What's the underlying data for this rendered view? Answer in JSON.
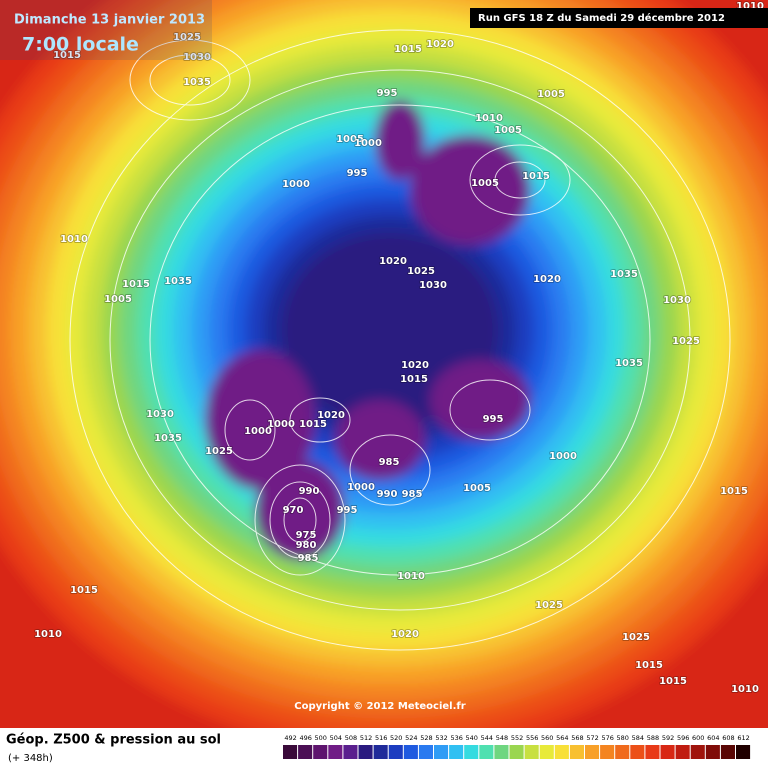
{
  "header": {
    "date": "Dimanche 13 janvier 2013",
    "time": "7:00 locale",
    "run": "Run GFS 18 Z du Samedi 29 décembre 2012"
  },
  "copyright": "Copyright © 2012 Meteociel.fr",
  "footer": {
    "title": "Géop. Z500 & pression au sol",
    "lead": "(+ 348h)"
  },
  "scale": {
    "values": [
      492,
      496,
      500,
      504,
      508,
      512,
      516,
      520,
      524,
      528,
      532,
      536,
      540,
      544,
      548,
      552,
      556,
      560,
      564,
      568,
      572,
      576,
      580,
      584,
      588,
      592,
      596,
      600,
      604,
      608,
      612
    ],
    "colors": [
      "#3a0a3a",
      "#4b0f55",
      "#5e146e",
      "#701c86",
      "#5a1f8e",
      "#2a1a80",
      "#1f2a9a",
      "#1c3cc0",
      "#1f5ae0",
      "#2a7af0",
      "#2f9cf5",
      "#30c0f2",
      "#35dbe0",
      "#4fe0b0",
      "#6fd680",
      "#9ad650",
      "#c8e040",
      "#e8ea3a",
      "#f8e038",
      "#f8c030",
      "#f8a028",
      "#f48420",
      "#f06a1c",
      "#ec5018",
      "#e83a18",
      "#d82814",
      "#c01c10",
      "#a0140c",
      "#800c08",
      "#5a0604",
      "#200000"
    ]
  },
  "isobars": [
    "1025",
    "1015",
    "1030",
    "1035",
    "1015",
    "1020",
    "995",
    "1005",
    "1010",
    "1005",
    "1005",
    "1000",
    "995",
    "1000",
    "1005",
    "1015",
    "1010",
    "1015",
    "1035",
    "1005",
    "1020",
    "1025",
    "1030",
    "1020",
    "1035",
    "1030",
    "1025",
    "1035",
    "1020",
    "1015",
    "1030",
    "1035",
    "1020",
    "1000",
    "1015",
    "1000",
    "995",
    "1025",
    "1000",
    "985",
    "990",
    "1000",
    "990",
    "985",
    "1005",
    "1015",
    "970",
    "995",
    "975",
    "980",
    "985",
    "1010",
    "1015",
    "1025",
    "1010",
    "1020",
    "1025",
    "1015",
    "1015",
    "1010",
    "1010"
  ]
}
